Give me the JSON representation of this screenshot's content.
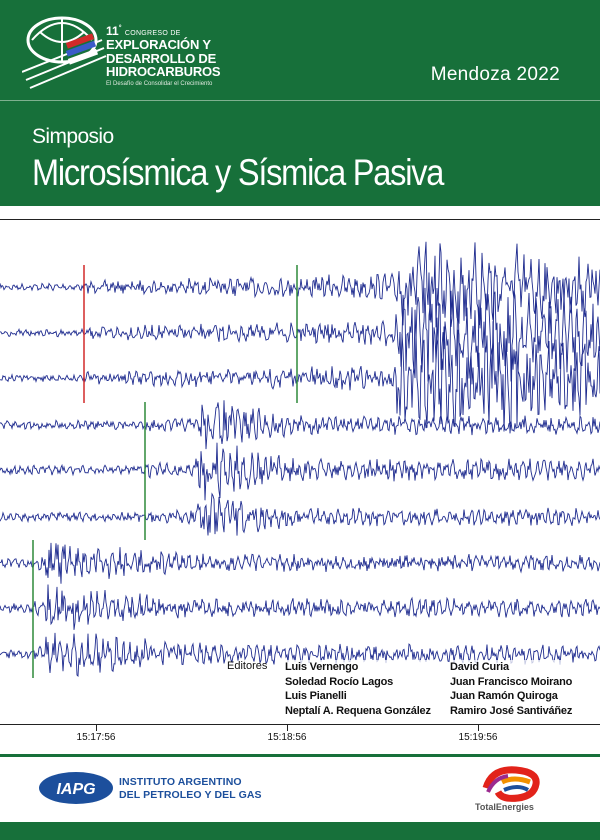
{
  "header": {
    "congreso_number": "11",
    "congreso_sup": "°",
    "congreso_word": "CONGRESO DE",
    "congreso_lines": [
      "EXPLORACIÓN Y",
      "DESARROLLO DE",
      "HIDROCARBUROS"
    ],
    "tagline": "El Desafío de Consolidar el Crecimiento",
    "place": "Mendoza 2022",
    "symposium_label": "Simposio",
    "symposium_title": "Microsísmica y Sísmica Pasiva"
  },
  "editors": {
    "label": "Editores",
    "left": [
      "Luis Vernengo",
      "Soledad Rocío Lagos",
      "Luis Pianelli",
      "Neptalí A. Requena González"
    ],
    "right": [
      "David Curia",
      "Juan Francisco Moirano",
      "Juan Ramón Quiroga",
      "Ramiro José Santiváñez"
    ]
  },
  "time_axis": {
    "labels": [
      "15:17:56",
      "15:18:56",
      "15:19:56"
    ]
  },
  "footer": {
    "iapg_logo_text": "IAPG",
    "iapg_line1": "INSTITUTO ARGENTINO",
    "iapg_line2": "DEL PETROLEO Y DEL GAS",
    "total_name_part1": "Total",
    "total_name_part2": "Energies"
  },
  "colors": {
    "brand_green": "#17703a",
    "trace_blue": "#1f2c8f",
    "pick_red": "#d22a2a",
    "pick_green": "#2f8a3a"
  }
}
